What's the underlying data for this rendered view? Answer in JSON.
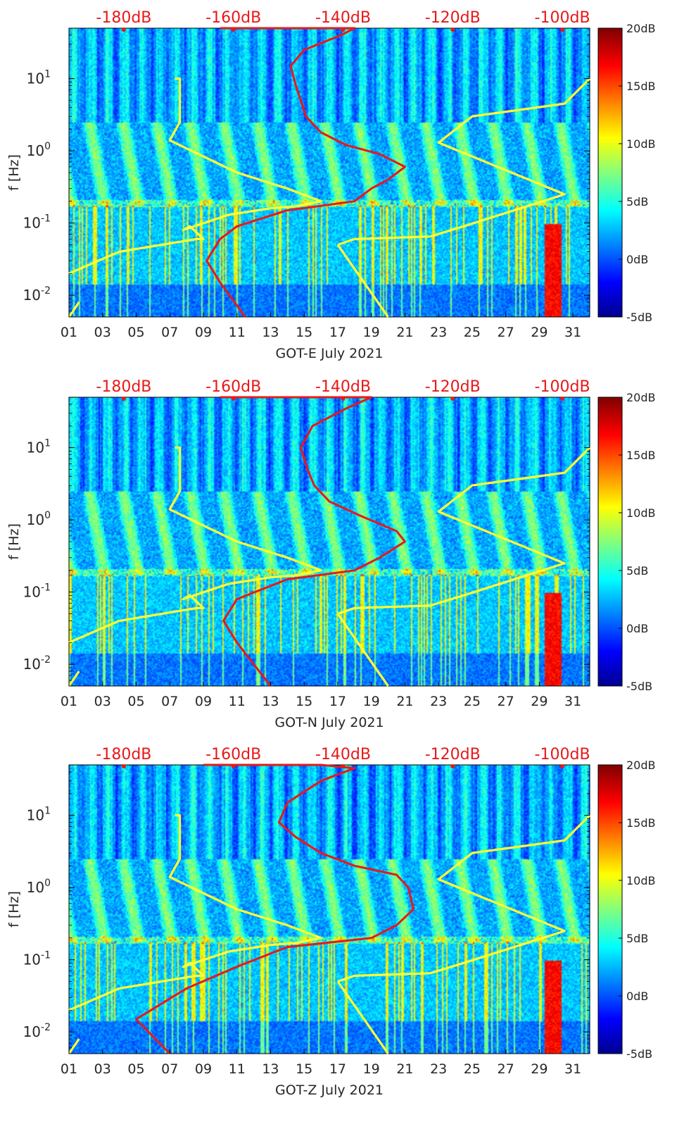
{
  "colorbar": {
    "tick_labels": [
      "20dB",
      "15dB",
      "10dB",
      "5dB",
      "0dB",
      "-5dB"
    ],
    "range_db": [
      -5,
      20
    ],
    "colormap": "jet"
  },
  "colors": {
    "nhnm_line": "#ffff33",
    "spectrum_line": "#e8181a",
    "top_axis_text": "#e8181a"
  },
  "chart_data": [
    {
      "type": "heatmap",
      "xlabel": "GOT-E July 2021",
      "ylabel": "f [Hz]",
      "x_tick_labels": [
        "01",
        "03",
        "05",
        "07",
        "09",
        "11",
        "13",
        "15",
        "17",
        "19",
        "21",
        "23",
        "25",
        "27",
        "29",
        "31"
      ],
      "x_range_days": [
        1,
        32
      ],
      "y_scale": "log",
      "y_range_hz": [
        0.005,
        50
      ],
      "y_ticks": [
        {
          "base": "10",
          "exp": "1",
          "value": 10
        },
        {
          "base": "10",
          "exp": "0",
          "value": 1
        },
        {
          "base": "10",
          "exp": "-1",
          "value": 0.1
        },
        {
          "base": "10",
          "exp": "-2",
          "value": 0.01
        }
      ],
      "top_tick_labels": [
        "-180dB",
        "-160dB",
        "-140dB",
        "-120dB",
        "-100dB"
      ],
      "top_range_db": [
        -190,
        -95
      ],
      "noise_model_curves": [
        {
          "color": "yellow",
          "points": [
            [
              1,
              0.005
            ],
            [
              1.6,
              0.008
            ]
          ]
        },
        {
          "color": "yellow",
          "points": [
            [
              1,
              0.02
            ],
            [
              4,
              0.04
            ],
            [
              8.6,
              0.06
            ],
            [
              9,
              0.06
            ],
            [
              8.2,
              0.09
            ],
            [
              7.8,
              0.08
            ],
            [
              10.5,
              0.13
            ],
            [
              13,
              0.16
            ],
            [
              14.5,
              0.17
            ],
            [
              16,
              0.2
            ],
            [
              14,
              0.3
            ],
            [
              11,
              0.5
            ],
            [
              7,
              1.4
            ],
            [
              7.6,
              2.5
            ],
            [
              7.6,
              10
            ],
            [
              7.3,
              10
            ]
          ]
        },
        {
          "color": "yellow",
          "points": [
            [
              17,
              0.05
            ],
            [
              20,
              0.005
            ]
          ]
        },
        {
          "color": "yellow",
          "points": [
            [
              17,
              0.05
            ],
            [
              18,
              0.06
            ],
            [
              22.5,
              0.065
            ],
            [
              24.5,
              0.09
            ],
            [
              30.5,
              0.25
            ],
            [
              23,
              1.3
            ],
            [
              25,
              3
            ],
            [
              30.5,
              4.5
            ],
            [
              32,
              10
            ]
          ]
        }
      ],
      "spectrum_curve": {
        "points": [
          [
            10,
            50
          ],
          [
            17,
            50
          ],
          [
            18,
            50
          ],
          [
            17.2,
            40
          ],
          [
            15,
            25
          ],
          [
            14.2,
            15
          ],
          [
            14.5,
            8
          ],
          [
            14.8,
            5
          ],
          [
            15.1,
            3
          ],
          [
            16,
            1.8
          ],
          [
            17.5,
            1.2
          ],
          [
            19.5,
            0.9
          ],
          [
            21,
            0.6
          ],
          [
            20,
            0.4
          ],
          [
            19,
            0.3
          ],
          [
            18,
            0.2
          ],
          [
            14,
            0.15
          ],
          [
            11,
            0.09
          ],
          [
            10,
            0.06
          ],
          [
            9.2,
            0.03
          ],
          [
            10,
            0.015
          ],
          [
            11.5,
            0.005
          ]
        ]
      }
    },
    {
      "type": "heatmap",
      "xlabel": "GOT-N July 2021",
      "ylabel": "f [Hz]",
      "x_tick_labels": [
        "01",
        "03",
        "05",
        "07",
        "09",
        "11",
        "13",
        "15",
        "17",
        "19",
        "21",
        "23",
        "25",
        "27",
        "29",
        "31"
      ],
      "x_range_days": [
        1,
        32
      ],
      "y_scale": "log",
      "y_range_hz": [
        0.005,
        50
      ],
      "y_ticks": [
        {
          "base": "10",
          "exp": "1",
          "value": 10
        },
        {
          "base": "10",
          "exp": "0",
          "value": 1
        },
        {
          "base": "10",
          "exp": "-1",
          "value": 0.1
        },
        {
          "base": "10",
          "exp": "-2",
          "value": 0.01
        }
      ],
      "top_tick_labels": [
        "-180dB",
        "-160dB",
        "-140dB",
        "-120dB",
        "-100dB"
      ],
      "top_range_db": [
        -190,
        -95
      ],
      "noise_model_curves": [
        {
          "color": "yellow",
          "points": [
            [
              1,
              0.005
            ],
            [
              1.6,
              0.008
            ]
          ]
        },
        {
          "color": "yellow",
          "points": [
            [
              1,
              0.02
            ],
            [
              4,
              0.04
            ],
            [
              8.6,
              0.06
            ],
            [
              9,
              0.06
            ],
            [
              8.2,
              0.09
            ],
            [
              7.8,
              0.08
            ],
            [
              10.5,
              0.13
            ],
            [
              13,
              0.16
            ],
            [
              14.5,
              0.17
            ],
            [
              16,
              0.2
            ],
            [
              14,
              0.3
            ],
            [
              11,
              0.5
            ],
            [
              7,
              1.4
            ],
            [
              7.6,
              2.5
            ],
            [
              7.6,
              10
            ],
            [
              7.3,
              10
            ]
          ]
        },
        {
          "color": "yellow",
          "points": [
            [
              17,
              0.05
            ],
            [
              20,
              0.005
            ]
          ]
        },
        {
          "color": "yellow",
          "points": [
            [
              17,
              0.05
            ],
            [
              18,
              0.06
            ],
            [
              22.5,
              0.065
            ],
            [
              24.5,
              0.09
            ],
            [
              30.5,
              0.25
            ],
            [
              23,
              1.3
            ],
            [
              25,
              3
            ],
            [
              30.5,
              4.5
            ],
            [
              32,
              10
            ]
          ]
        }
      ],
      "spectrum_curve": {
        "points": [
          [
            10,
            50
          ],
          [
            17,
            50
          ],
          [
            19,
            50
          ],
          [
            17.5,
            35
          ],
          [
            15.5,
            20
          ],
          [
            14.8,
            10
          ],
          [
            15.2,
            5
          ],
          [
            15.6,
            3
          ],
          [
            16.5,
            1.8
          ],
          [
            18.5,
            1.1
          ],
          [
            20.5,
            0.7
          ],
          [
            21,
            0.5
          ],
          [
            19.5,
            0.3
          ],
          [
            18,
            0.2
          ],
          [
            14,
            0.15
          ],
          [
            11,
            0.08
          ],
          [
            10.2,
            0.04
          ],
          [
            11,
            0.02
          ],
          [
            13,
            0.005
          ]
        ]
      }
    },
    {
      "type": "heatmap",
      "xlabel": "GOT-Z July 2021",
      "ylabel": "f [Hz]",
      "x_tick_labels": [
        "01",
        "03",
        "05",
        "07",
        "09",
        "11",
        "13",
        "15",
        "17",
        "19",
        "21",
        "23",
        "25",
        "27",
        "29",
        "31"
      ],
      "x_range_days": [
        1,
        32
      ],
      "y_scale": "log",
      "y_range_hz": [
        0.005,
        50
      ],
      "y_ticks": [
        {
          "base": "10",
          "exp": "1",
          "value": 10
        },
        {
          "base": "10",
          "exp": "0",
          "value": 1
        },
        {
          "base": "10",
          "exp": "-1",
          "value": 0.1
        },
        {
          "base": "10",
          "exp": "-2",
          "value": 0.01
        }
      ],
      "top_tick_labels": [
        "-180dB",
        "-160dB",
        "-140dB",
        "-120dB",
        "-100dB"
      ],
      "top_range_db": [
        -190,
        -95
      ],
      "noise_model_curves": [
        {
          "color": "yellow",
          "points": [
            [
              1,
              0.005
            ],
            [
              1.6,
              0.008
            ]
          ]
        },
        {
          "color": "yellow",
          "points": [
            [
              1,
              0.02
            ],
            [
              4,
              0.04
            ],
            [
              8.6,
              0.06
            ],
            [
              9,
              0.06
            ],
            [
              8.2,
              0.09
            ],
            [
              7.8,
              0.08
            ],
            [
              10.5,
              0.13
            ],
            [
              13,
              0.16
            ],
            [
              14.5,
              0.17
            ],
            [
              16,
              0.2
            ],
            [
              14,
              0.3
            ],
            [
              11,
              0.5
            ],
            [
              7,
              1.4
            ],
            [
              7.6,
              2.5
            ],
            [
              7.6,
              10
            ],
            [
              7.3,
              10
            ]
          ]
        },
        {
          "color": "yellow",
          "points": [
            [
              17,
              0.05
            ],
            [
              20,
              0.005
            ]
          ]
        },
        {
          "color": "yellow",
          "points": [
            [
              17,
              0.05
            ],
            [
              18,
              0.06
            ],
            [
              22.5,
              0.065
            ],
            [
              24.5,
              0.09
            ],
            [
              30.5,
              0.25
            ],
            [
              23,
              1.3
            ],
            [
              25,
              3
            ],
            [
              30.5,
              4.5
            ],
            [
              32,
              10
            ]
          ]
        }
      ],
      "spectrum_curve": {
        "points": [
          [
            9,
            50
          ],
          [
            16,
            50
          ],
          [
            18,
            45
          ],
          [
            16,
            30
          ],
          [
            14,
            15
          ],
          [
            13.5,
            8
          ],
          [
            14.5,
            5
          ],
          [
            16,
            3
          ],
          [
            18,
            2
          ],
          [
            20.5,
            1.5
          ],
          [
            21.2,
            1
          ],
          [
            21.5,
            0.5
          ],
          [
            20.5,
            0.3
          ],
          [
            19,
            0.2
          ],
          [
            14,
            0.15
          ],
          [
            11,
            0.08
          ],
          [
            8,
            0.04
          ],
          [
            5,
            0.015
          ],
          [
            7,
            0.005
          ]
        ]
      }
    }
  ]
}
